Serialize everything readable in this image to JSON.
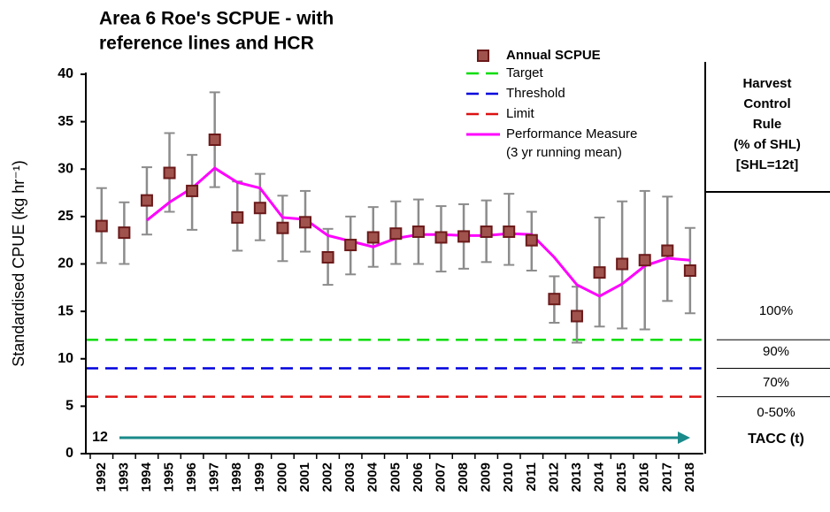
{
  "chart_data": {
    "type": "errorbar",
    "title": [
      "Area 6 Roe's SCPUE - with",
      "reference lines and HCR"
    ],
    "y_label": "Standardised CPUE (kg hr⁻¹)",
    "categories": [
      "1992",
      "1993",
      "1994",
      "1995",
      "1996",
      "1997",
      "1998",
      "1999",
      "2000",
      "2001",
      "2002",
      "2003",
      "2004",
      "2005",
      "2006",
      "2007",
      "2008",
      "2009",
      "2010",
      "2011",
      "2012",
      "2013",
      "2014",
      "2015",
      "2016",
      "2017",
      "2018"
    ],
    "ylim": [
      0,
      40
    ],
    "yticks": [
      0,
      5,
      10,
      15,
      20,
      25,
      30,
      35,
      40
    ],
    "series": [
      {
        "name": "Annual SCPUE",
        "type": "errorbar",
        "color": "#a0524d",
        "edge_color": "#6b1a1a",
        "error_color": "#8c8c8c",
        "values": [
          24.0,
          23.3,
          26.7,
          29.6,
          27.7,
          33.1,
          24.9,
          25.9,
          23.8,
          24.4,
          20.7,
          22.0,
          22.8,
          23.2,
          23.4,
          22.8,
          22.9,
          23.4,
          23.4,
          22.5,
          16.3,
          14.5,
          19.1,
          20.0,
          20.4,
          21.4,
          19.3
        ],
        "lower": [
          20.1,
          20.0,
          23.1,
          25.5,
          23.6,
          28.1,
          21.4,
          22.5,
          20.3,
          21.3,
          17.8,
          18.9,
          19.7,
          20.0,
          20.0,
          19.2,
          19.5,
          20.2,
          19.9,
          19.3,
          13.8,
          11.7,
          13.4,
          13.2,
          13.1,
          16.1,
          14.8
        ],
        "upper": [
          28.0,
          26.5,
          30.2,
          33.8,
          31.5,
          38.1,
          28.7,
          29.5,
          27.2,
          27.7,
          23.7,
          25.0,
          26.0,
          26.6,
          26.8,
          26.1,
          26.3,
          26.7,
          27.4,
          25.5,
          18.7,
          17.6,
          24.9,
          26.6,
          27.7,
          27.1,
          23.8
        ]
      },
      {
        "name": "Performance Measure",
        "note": "(3 yr running mean)",
        "type": "line",
        "color": "#ff00ff",
        "values": [
          null,
          null,
          24.6,
          26.5,
          28.0,
          30.1,
          28.6,
          28.0,
          24.9,
          24.7,
          23.0,
          22.4,
          21.8,
          22.7,
          23.1,
          23.1,
          23.0,
          23.0,
          23.2,
          23.1,
          20.7,
          17.8,
          16.6,
          17.9,
          19.8,
          20.6,
          20.4
        ]
      }
    ],
    "reference_lines": [
      {
        "name": "Target",
        "value": 12,
        "color": "#00dd00"
      },
      {
        "name": "Threshold",
        "value": 9,
        "color": "#0000dd"
      },
      {
        "name": "Limit",
        "value": 6,
        "color": "#dd1111"
      }
    ],
    "tacc": {
      "value": 12,
      "label": "TACC (t)",
      "color": "#1a8a8a"
    },
    "hcr": {
      "header": [
        "Harvest",
        "Control",
        "Rule",
        "(% of SHL)",
        "[SHL=12t]"
      ],
      "rows": [
        "100%",
        "90%",
        "70%",
        "0-50%"
      ]
    }
  }
}
